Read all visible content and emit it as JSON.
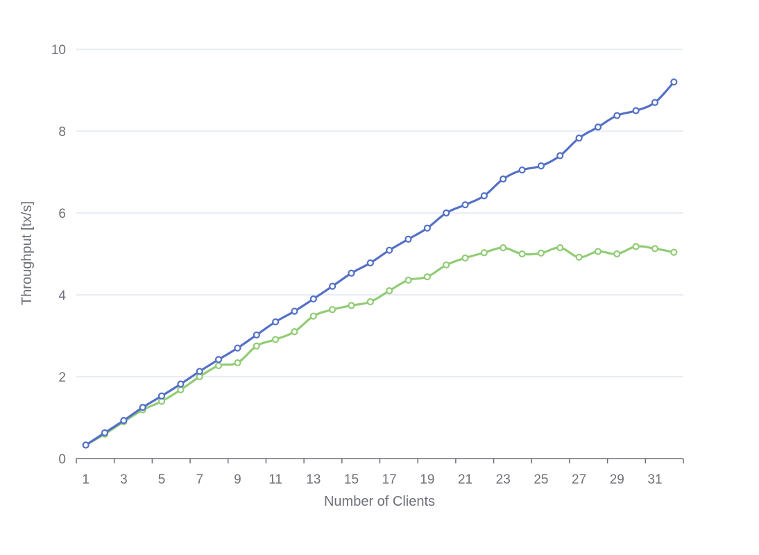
{
  "chart_data": {
    "type": "line",
    "title": "",
    "xlabel": "Number of Clients",
    "ylabel": "Throughput [tx/s]",
    "x": [
      1,
      2,
      3,
      4,
      5,
      6,
      7,
      8,
      9,
      10,
      11,
      12,
      13,
      14,
      15,
      16,
      17,
      18,
      19,
      20,
      21,
      22,
      23,
      24,
      25,
      26,
      27,
      28,
      29,
      30,
      31,
      32
    ],
    "x_tick_labels": [
      "1",
      "3",
      "5",
      "7",
      "9",
      "11",
      "13",
      "15",
      "17",
      "19",
      "21",
      "23",
      "25",
      "27",
      "29",
      "31"
    ],
    "y_ticks": [
      "0",
      "2",
      "4",
      "6",
      "8",
      "10"
    ],
    "ylim": [
      0,
      10
    ],
    "grid": true,
    "legend": "none",
    "smooth": true,
    "series": [
      {
        "color": "#5470c6",
        "values": [
          0.33,
          0.63,
          0.93,
          1.25,
          1.53,
          1.82,
          2.13,
          2.42,
          2.7,
          3.02,
          3.34,
          3.6,
          3.9,
          4.21,
          4.53,
          4.78,
          5.09,
          5.36,
          5.63,
          6.0,
          6.2,
          6.42,
          6.83,
          7.05,
          7.15,
          7.4,
          7.83,
          8.1,
          8.38,
          8.5,
          8.7,
          9.2
        ]
      },
      {
        "color": "#91cc75",
        "values": [
          0.33,
          0.6,
          0.9,
          1.19,
          1.4,
          1.68,
          2.0,
          2.27,
          2.34,
          2.75,
          2.91,
          3.1,
          3.48,
          3.64,
          3.74,
          3.83,
          4.1,
          4.36,
          4.44,
          4.73,
          4.9,
          5.03,
          5.15,
          5.0,
          5.02,
          5.15,
          4.92,
          5.06,
          5.0,
          5.18,
          5.13,
          5.04
        ]
      }
    ]
  }
}
